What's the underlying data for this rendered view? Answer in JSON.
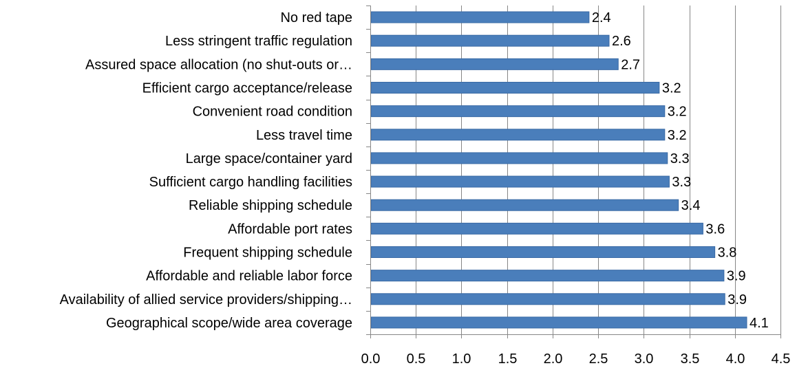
{
  "chart_data": {
    "type": "bar",
    "orientation": "horizontal",
    "categories": [
      "No red tape",
      "Less stringent traffic regulation",
      "Assured space allocation (no shut-outs or…",
      "Efficient cargo acceptance/release",
      "Convenient road condition",
      "Less travel time",
      "Large space/container yard",
      "Sufficient cargo handling facilities",
      "Reliable shipping schedule",
      "Affordable port rates",
      "Frequent shipping schedule",
      "Affordable and reliable labor force",
      "Availability of allied service providers/shipping…",
      "Geographical scope/wide area coverage"
    ],
    "values": [
      2.4,
      2.62,
      2.72,
      3.17,
      3.23,
      3.23,
      3.26,
      3.28,
      3.38,
      3.65,
      3.78,
      3.88,
      3.89,
      4.13
    ],
    "value_labels": [
      "2.4",
      "2.6",
      "2.7",
      "3.2",
      "3.2",
      "3.2",
      "3.3",
      "3.3",
      "3.4",
      "3.6",
      "3.8",
      "3.9",
      "3.9",
      "4.1"
    ],
    "xlim": [
      0,
      4.5
    ],
    "x_ticks": [
      0,
      0.5,
      1,
      1.5,
      2,
      2.5,
      3,
      3.5,
      4,
      4.5
    ],
    "x_tick_labels": [
      "0.0",
      "0.5",
      "1.0",
      "1.5",
      "2.0",
      "2.5",
      "3.0",
      "3.5",
      "4.0",
      "4.5"
    ],
    "title": "",
    "xlabel": "",
    "ylabel": "",
    "grid": "vertical",
    "legend": "none",
    "bar_color": "#4a7ebb",
    "bar_edge_color": "#3a6aa5",
    "grid_color": "#868686",
    "axis_color": "#868686"
  }
}
